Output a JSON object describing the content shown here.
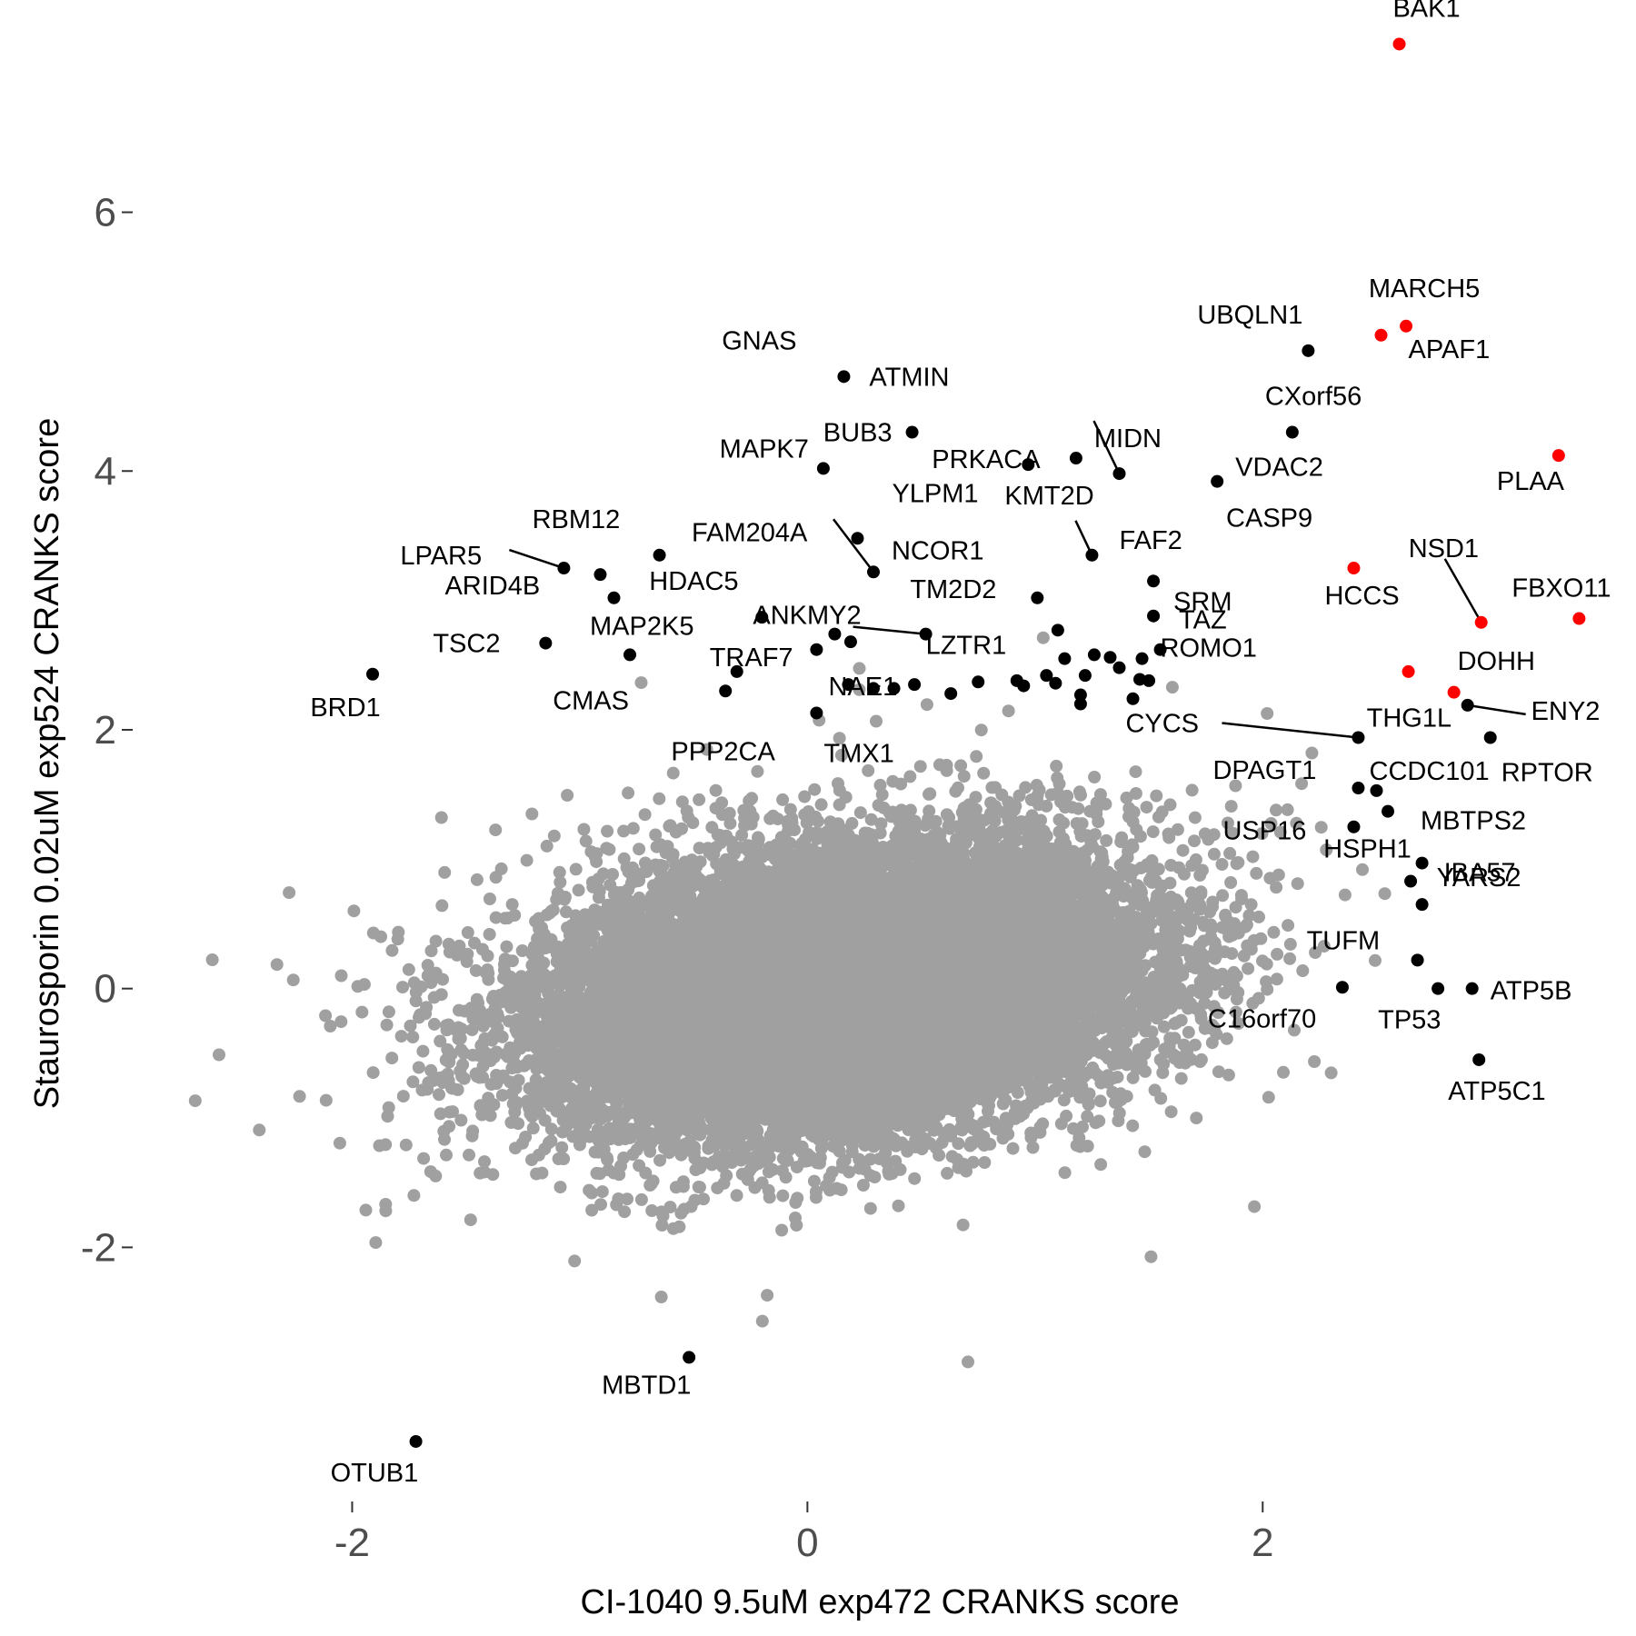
{
  "chart_data": {
    "type": "scatter",
    "title": "",
    "xlabel": "CI-1040 9.5uM exp472 CRANKS score",
    "ylabel": "Staurosporin 0.02uM exp524 CRANKS score",
    "xlim": [
      -3.0,
      3.6
    ],
    "ylim": [
      -3.95,
      7.5
    ],
    "x_ticks": [
      {
        "value": -2,
        "label": "-2"
      },
      {
        "value": 0,
        "label": "0"
      },
      {
        "value": 2,
        "label": "2"
      }
    ],
    "y_ticks": [
      {
        "value": -2,
        "label": "-2"
      },
      {
        "value": 0,
        "label": "0"
      },
      {
        "value": 2,
        "label": "2"
      },
      {
        "value": 4,
        "label": "4"
      },
      {
        "value": 6,
        "label": "6"
      }
    ],
    "grid": false,
    "legend": "none",
    "colors": {
      "background": "#ffffff",
      "all_genes": "#a0a0a0",
      "highlighted": "#000000",
      "top_hits": "#ff0000"
    },
    "background_cloud": {
      "description_count": 18000,
      "x_mean": 0.15,
      "y_mean": 0.0,
      "x_sd": 0.62,
      "y_sd": 0.52,
      "correlation": 0.25,
      "color": "#a0a0a0"
    },
    "labeled_points": [
      {
        "gene": "BAK1",
        "x": 2.6,
        "y": 7.3,
        "color": "red"
      },
      {
        "gene": "MARCH5",
        "x": 2.63,
        "y": 5.12,
        "color": "red"
      },
      {
        "gene": "APAF1",
        "x": 2.52,
        "y": 5.05,
        "color": "red"
      },
      {
        "gene": "UBQLN1",
        "x": 2.2,
        "y": 4.93,
        "color": "black"
      },
      {
        "gene": "PLAA",
        "x": 3.3,
        "y": 4.12,
        "color": "red"
      },
      {
        "gene": "HCCS",
        "x": 2.4,
        "y": 3.25,
        "color": "red"
      },
      {
        "gene": "NSD1",
        "x": 2.96,
        "y": 2.83,
        "color": "red"
      },
      {
        "gene": "FBXO11",
        "x": 3.39,
        "y": 2.86,
        "color": "red"
      },
      {
        "gene": "DOHH",
        "x": 2.64,
        "y": 2.45,
        "color": "red"
      },
      {
        "gene": "THG1L",
        "x": 2.84,
        "y": 2.29,
        "color": "red"
      },
      {
        "gene": "GNAS",
        "x": 0.16,
        "y": 4.73,
        "color": "black"
      },
      {
        "gene": "ATMIN",
        "x": 0.16,
        "y": 4.73,
        "color": "black"
      },
      {
        "gene": "CXorf56",
        "x": 2.13,
        "y": 4.3,
        "color": "black"
      },
      {
        "gene": "BUB3",
        "x": 0.46,
        "y": 4.3,
        "color": "black"
      },
      {
        "gene": "PRKACA",
        "x": 0.97,
        "y": 4.05,
        "color": "black"
      },
      {
        "gene": "MIDN",
        "x": 1.18,
        "y": 4.1,
        "color": "black"
      },
      {
        "gene": "MAPK7",
        "x": 0.07,
        "y": 4.02,
        "color": "black"
      },
      {
        "gene": "VDAC2",
        "x": 1.8,
        "y": 3.92,
        "color": "black"
      },
      {
        "gene": "KMT2D",
        "x": 1.25,
        "y": 3.35,
        "color": "black"
      },
      {
        "gene": "FAF2",
        "x": 1.37,
        "y": 3.98,
        "color": "black"
      },
      {
        "gene": "YLPM1",
        "x": 0.22,
        "y": 3.48,
        "color": "black"
      },
      {
        "gene": "CASP9",
        "x": 1.52,
        "y": 3.15,
        "color": "black"
      },
      {
        "gene": "RBM12",
        "x": -0.65,
        "y": 3.35,
        "color": "black"
      },
      {
        "gene": "FAM204A",
        "x": 0.29,
        "y": 3.22,
        "color": "black"
      },
      {
        "gene": "NCOR1",
        "x": 0.29,
        "y": 3.22,
        "color": "black"
      },
      {
        "gene": "LPAR5",
        "x": -1.07,
        "y": 3.25,
        "color": "black"
      },
      {
        "gene": "TM2D2",
        "x": 1.01,
        "y": 3.02,
        "color": "black"
      },
      {
        "gene": "TAZ",
        "x": 1.52,
        "y": 2.88,
        "color": "black"
      },
      {
        "gene": "SRM",
        "x": 1.52,
        "y": 2.88,
        "color": "black"
      },
      {
        "gene": "ARID4B",
        "x": -0.85,
        "y": 3.02,
        "color": "black"
      },
      {
        "gene": "HDAC5",
        "x": -0.2,
        "y": 2.87,
        "color": "black"
      },
      {
        "gene": "ANKMY2",
        "x": 0.04,
        "y": 2.62,
        "color": "black"
      },
      {
        "gene": "MAP2K5",
        "x": -0.78,
        "y": 2.58,
        "color": "black"
      },
      {
        "gene": "TSC2",
        "x": -1.15,
        "y": 2.67,
        "color": "black"
      },
      {
        "gene": "LZTR1",
        "x": 0.52,
        "y": 2.74,
        "color": "black"
      },
      {
        "gene": "ROMO1",
        "x": 1.47,
        "y": 2.55,
        "color": "black"
      },
      {
        "gene": "TRAF7",
        "x": -0.31,
        "y": 2.45,
        "color": "black"
      },
      {
        "gene": "NAE1",
        "x": 0.18,
        "y": 2.35,
        "color": "black"
      },
      {
        "gene": "CMAS",
        "x": -0.36,
        "y": 2.3,
        "color": "black"
      },
      {
        "gene": "BRD1",
        "x": -1.91,
        "y": 2.43,
        "color": "black"
      },
      {
        "gene": "PPP2CA",
        "x": 0.04,
        "y": 2.13,
        "color": "black"
      },
      {
        "gene": "TMX1",
        "x": 0.04,
        "y": 2.13,
        "color": "black"
      },
      {
        "gene": "CYCS",
        "x": 2.42,
        "y": 1.94,
        "color": "black"
      },
      {
        "gene": "ENY2",
        "x": 2.9,
        "y": 2.19,
        "color": "black"
      },
      {
        "gene": "RPTOR",
        "x": 3.0,
        "y": 1.94,
        "color": "black"
      },
      {
        "gene": "CCDC101",
        "x": 2.5,
        "y": 1.53,
        "color": "black"
      },
      {
        "gene": "DPAGT1",
        "x": 2.42,
        "y": 1.55,
        "color": "black"
      },
      {
        "gene": "MBTPS2",
        "x": 2.55,
        "y": 1.37,
        "color": "black"
      },
      {
        "gene": "USP16",
        "x": 2.4,
        "y": 1.25,
        "color": "black"
      },
      {
        "gene": "IBA57",
        "x": 2.7,
        "y": 0.97,
        "color": "black"
      },
      {
        "gene": "HSPH1",
        "x": 2.65,
        "y": 0.83,
        "color": "black"
      },
      {
        "gene": "YARS2",
        "x": 2.7,
        "y": 0.65,
        "color": "black"
      },
      {
        "gene": "TUFM",
        "x": 2.68,
        "y": 0.22,
        "color": "black"
      },
      {
        "gene": "ATP5B",
        "x": 2.92,
        "y": 0.0,
        "color": "black"
      },
      {
        "gene": "TP53",
        "x": 2.77,
        "y": 0.0,
        "color": "black"
      },
      {
        "gene": "C16orf70",
        "x": 2.35,
        "y": 0.01,
        "color": "black"
      },
      {
        "gene": "ATP5C1",
        "x": 2.95,
        "y": -0.55,
        "color": "black"
      },
      {
        "gene": "MBTD1",
        "x": -0.52,
        "y": -2.85,
        "color": "black"
      },
      {
        "gene": "OTUB1",
        "x": -1.72,
        "y": -3.5,
        "color": "black"
      }
    ],
    "unlabeled_black_points": [
      {
        "x": 0.47,
        "y": 2.35
      },
      {
        "x": 0.38,
        "y": 2.32
      },
      {
        "x": 0.29,
        "y": 2.32
      },
      {
        "x": 0.63,
        "y": 2.28
      },
      {
        "x": 0.75,
        "y": 2.37
      },
      {
        "x": 0.92,
        "y": 2.38
      },
      {
        "x": 0.95,
        "y": 2.34
      },
      {
        "x": 1.05,
        "y": 2.42
      },
      {
        "x": 1.09,
        "y": 2.36
      },
      {
        "x": 1.13,
        "y": 2.55
      },
      {
        "x": 1.2,
        "y": 2.27
      },
      {
        "x": 1.22,
        "y": 2.42
      },
      {
        "x": 1.26,
        "y": 2.58
      },
      {
        "x": 1.33,
        "y": 2.56
      },
      {
        "x": 1.37,
        "y": 2.48
      },
      {
        "x": 1.43,
        "y": 2.24
      },
      {
        "x": 1.46,
        "y": 2.39
      },
      {
        "x": 1.5,
        "y": 2.38
      },
      {
        "x": 1.1,
        "y": 2.77
      },
      {
        "x": 0.12,
        "y": 2.74
      },
      {
        "x": 0.19,
        "y": 2.68
      },
      {
        "x": -0.91,
        "y": 3.2
      },
      {
        "x": 1.2,
        "y": 2.2
      },
      {
        "x": 1.55,
        "y": 2.62
      }
    ]
  }
}
